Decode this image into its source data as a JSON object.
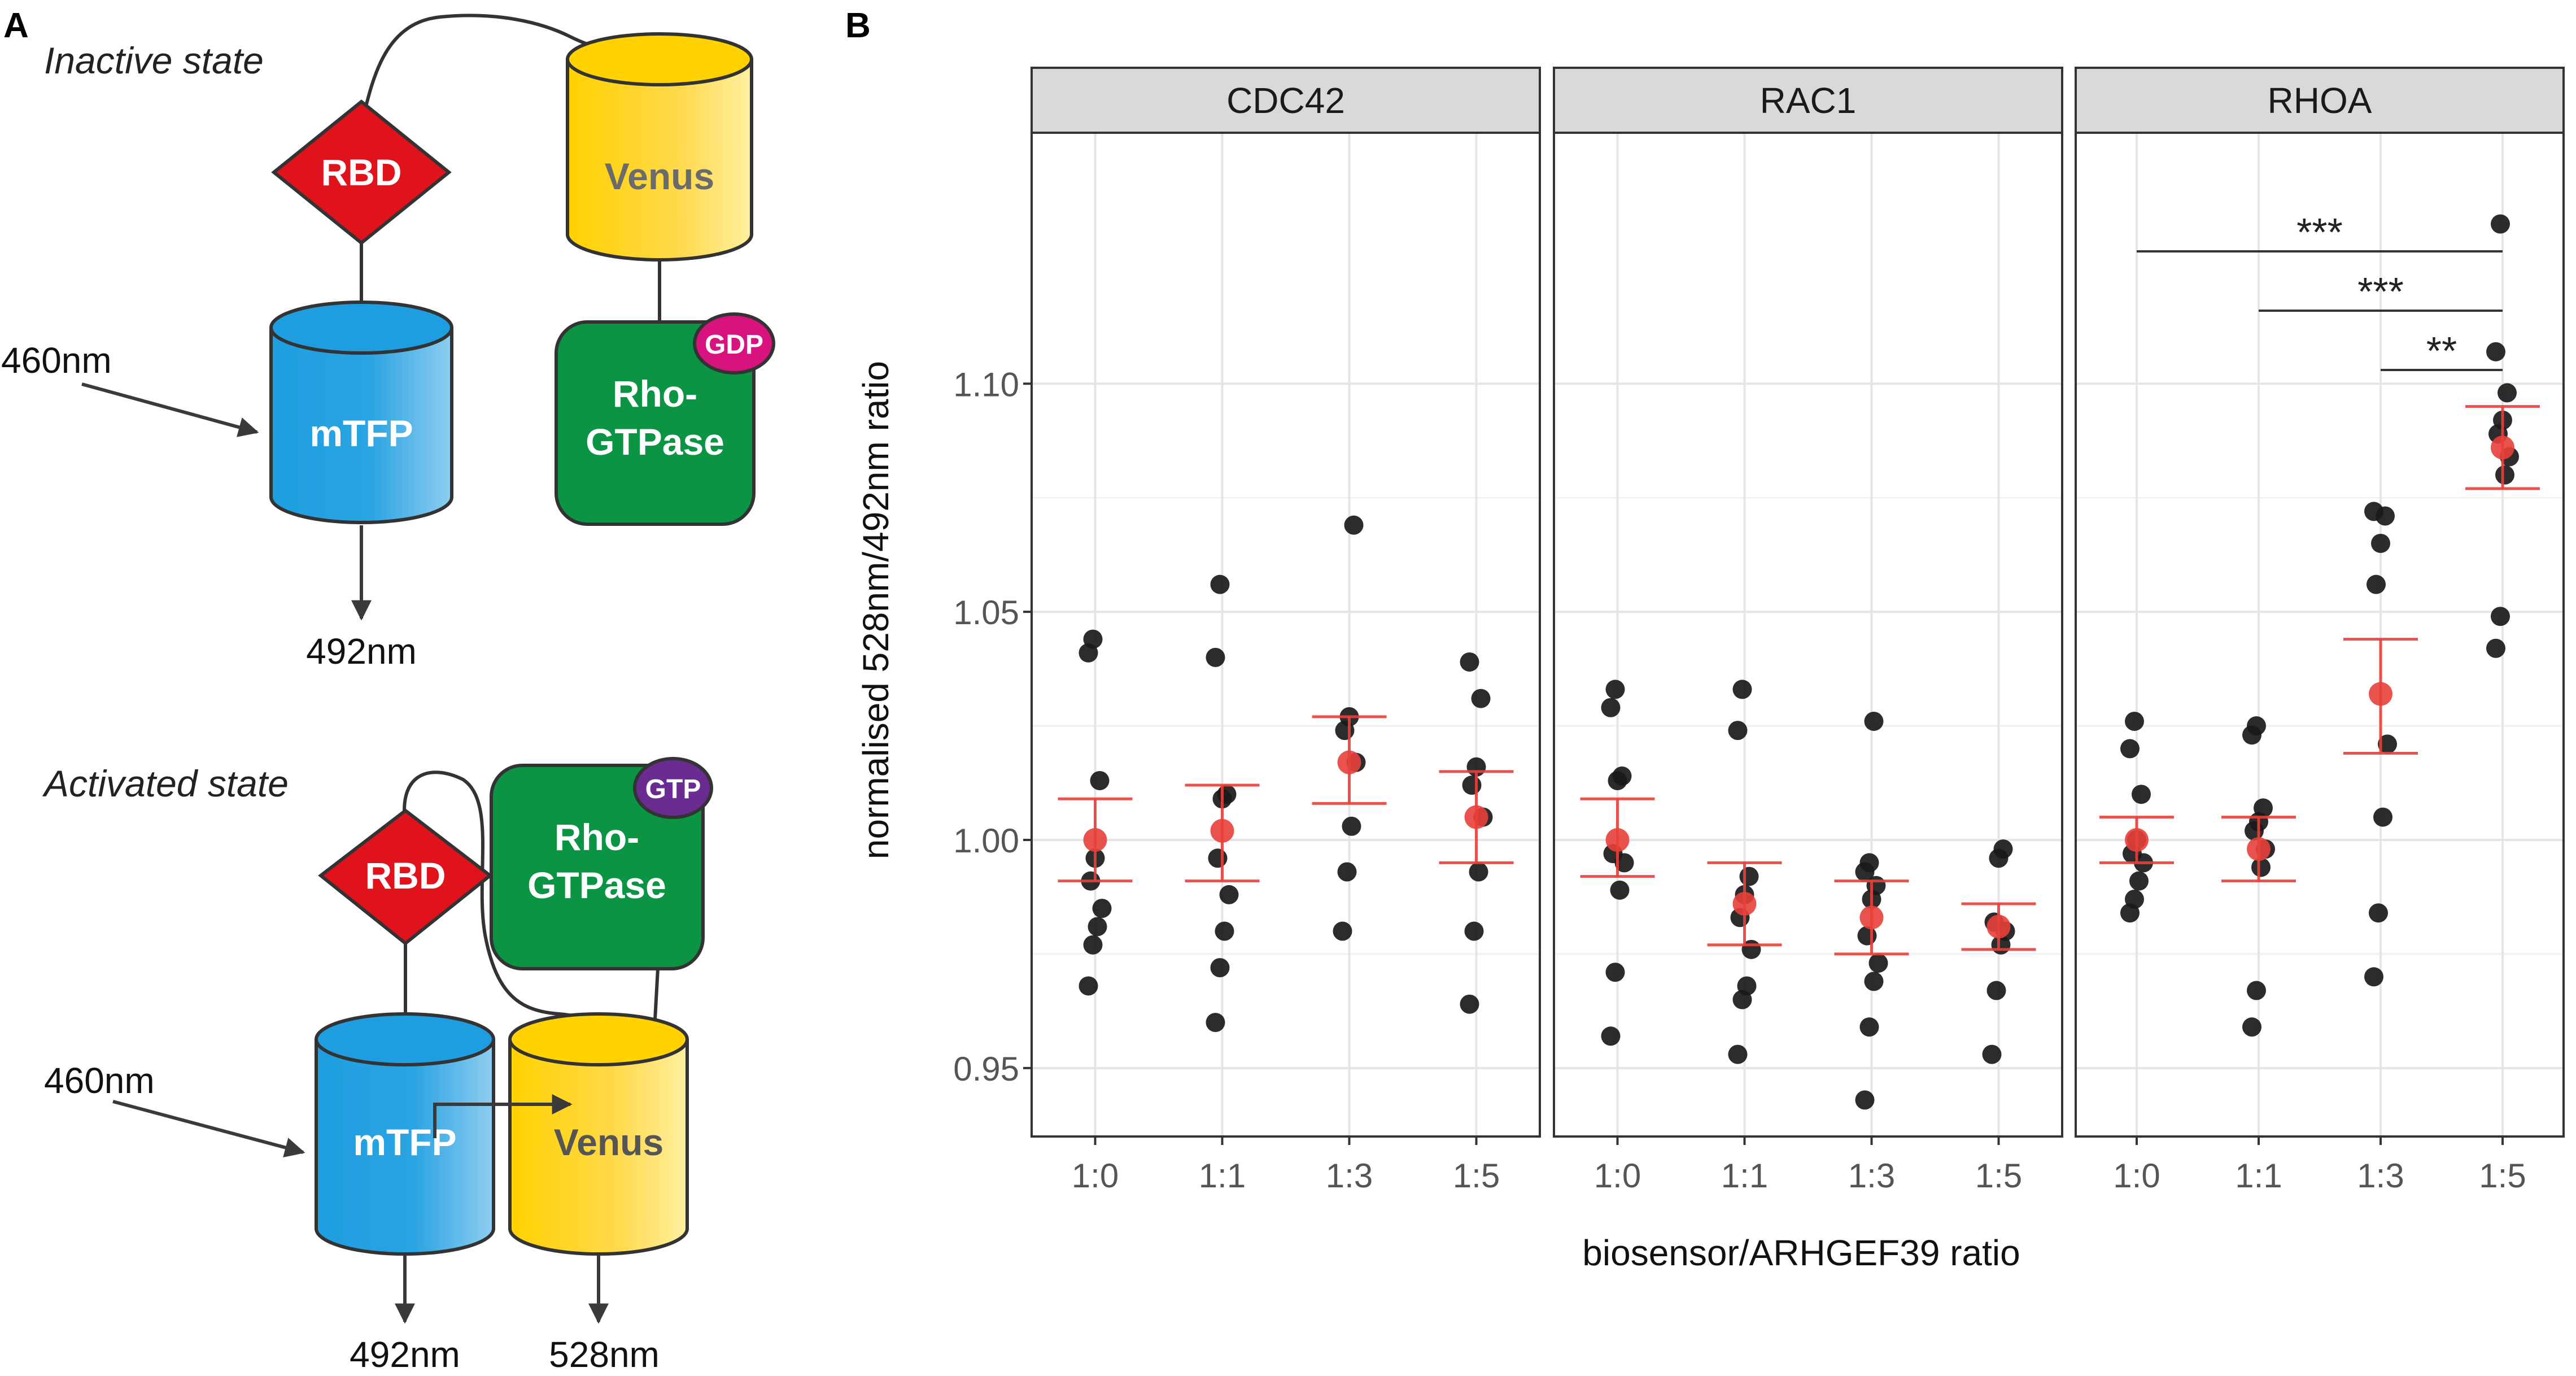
{
  "panel_a": {
    "label": "A",
    "inactive": {
      "title": "Inactive state",
      "rbd": "RBD",
      "venus": "Venus",
      "mtfp": "mTFP",
      "rho_line1": "Rho-",
      "rho_line2": "GTPase",
      "gdp": "GDP",
      "excitation": "460nm",
      "emission": "492nm"
    },
    "activated": {
      "title": "Activated state",
      "rbd": "RBD",
      "venus": "Venus",
      "mtfp": "mTFP",
      "rho_line1": "Rho-",
      "rho_line2": "GTPase",
      "gtp": "GTP",
      "excitation": "460nm",
      "emission_mtfp": "492nm",
      "emission_venus": "528nm"
    },
    "colors": {
      "rbd": "#e0121c",
      "venus": "#ffd200",
      "mtfp": "#1e9ee0",
      "rho": "#0a9443",
      "gdp": "#d9137e",
      "gtp": "#6a2c91"
    }
  },
  "panel_b": {
    "label": "B"
  },
  "chart_data": {
    "type": "scatter",
    "ylabel": "normalised 528nm/492nm ratio",
    "xlabel": "biosensor/ARHGEF39 ratio",
    "ylim": [
      0.935,
      1.155
    ],
    "yticks": [
      0.95,
      1.0,
      1.05,
      1.1
    ],
    "ytick_labels": [
      "0.95",
      "1.00",
      "1.05",
      "1.10"
    ],
    "categories": [
      "1:0",
      "1:1",
      "1:3",
      "1:5"
    ],
    "grid": true,
    "point_color": "#1a1a1a",
    "summary_color": "#e8403a",
    "facets": [
      {
        "name": "CDC42",
        "points": [
          [
            0.968,
            0.977,
            0.981,
            0.985,
            0.991,
            0.996,
            1.013,
            1.041,
            1.044
          ],
          [
            0.96,
            0.972,
            0.98,
            0.988,
            0.996,
            1.009,
            1.01,
            1.04,
            1.056
          ],
          [
            0.98,
            0.993,
            1.003,
            1.017,
            1.024,
            1.027,
            1.069
          ],
          [
            0.964,
            0.98,
            0.993,
            1.005,
            1.012,
            1.016,
            1.031,
            1.039
          ]
        ],
        "mean": [
          1.0,
          1.002,
          1.017,
          1.005
        ],
        "lower": [
          0.991,
          0.991,
          1.008,
          0.995
        ],
        "upper": [
          1.009,
          1.012,
          1.027,
          1.015
        ]
      },
      {
        "name": "RAC1",
        "points": [
          [
            0.957,
            0.971,
            0.989,
            0.995,
            0.997,
            1.013,
            1.014,
            1.029,
            1.033
          ],
          [
            0.953,
            0.965,
            0.968,
            0.976,
            0.983,
            0.988,
            0.992,
            1.024,
            1.033
          ],
          [
            0.943,
            0.959,
            0.969,
            0.973,
            0.979,
            0.987,
            0.99,
            0.993,
            0.995,
            1.026
          ],
          [
            0.953,
            0.967,
            0.977,
            0.98,
            0.982,
            0.996,
            0.998
          ]
        ],
        "mean": [
          1.0,
          0.986,
          0.983,
          0.981
        ],
        "lower": [
          0.992,
          0.977,
          0.975,
          0.976
        ],
        "upper": [
          1.009,
          0.995,
          0.991,
          0.986
        ]
      },
      {
        "name": "RHOA",
        "points": [
          [
            0.984,
            0.987,
            0.991,
            0.995,
            0.997,
            1.0,
            1.01,
            1.02,
            1.026
          ],
          [
            0.959,
            0.967,
            0.994,
            0.998,
            1.002,
            1.004,
            1.007,
            1.023,
            1.025
          ],
          [
            0.97,
            0.984,
            1.005,
            1.021,
            1.056,
            1.065,
            1.071,
            1.072
          ],
          [
            1.042,
            1.049,
            1.08,
            1.084,
            1.089,
            1.092,
            1.098,
            1.107,
            1.135
          ]
        ],
        "mean": [
          1.0,
          0.998,
          1.032,
          1.086
        ],
        "lower": [
          0.995,
          0.991,
          1.019,
          1.077
        ],
        "upper": [
          1.005,
          1.005,
          1.044,
          1.095
        ],
        "significance": [
          {
            "from": "1:0",
            "to": "1:5",
            "label": "***",
            "y": 1.129
          },
          {
            "from": "1:1",
            "to": "1:5",
            "label": "***",
            "y": 1.116
          },
          {
            "from": "1:3",
            "to": "1:5",
            "label": "**",
            "y": 1.103
          }
        ]
      }
    ]
  }
}
